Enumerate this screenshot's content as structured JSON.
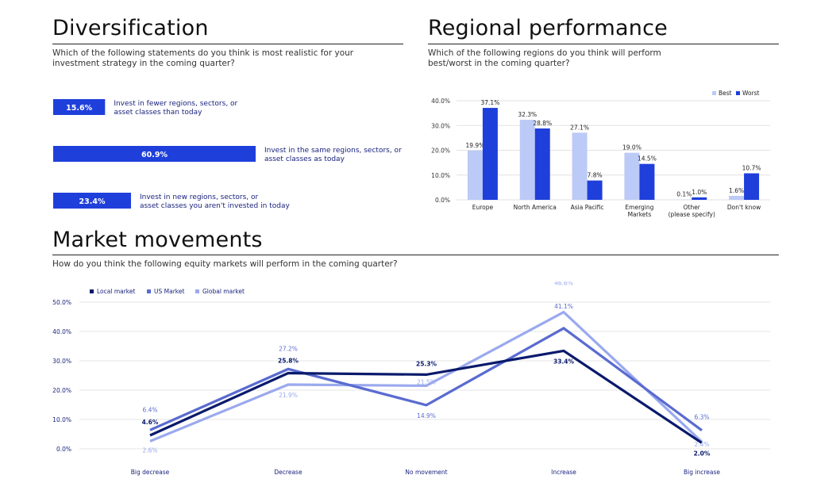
{
  "colors": {
    "dark_blue": "#0a1a6b",
    "mid_blue": "#5a6bd0",
    "light_blue": "#9aa9ee",
    "bar_blue": "#1f3fdb",
    "best_blue": "#bccaf7"
  },
  "diversification": {
    "title": "Diversification",
    "question": "Which of the following statements do you think is most realistic for your investment strategy in the coming quarter?"
  },
  "regional": {
    "title": "Regional performance",
    "question": "Which of the following regions do you think will perform best/worst in the coming quarter?"
  },
  "market": {
    "title": "Market movements",
    "question": "How do you think the following equity markets will perform in the coming quarter?"
  },
  "chart_data": [
    {
      "type": "bar",
      "orientation": "horizontal",
      "categories": [
        "Invest in fewer regions, sectors, or asset classes than today",
        "Invest in the same regions, sectors, or asset classes as today",
        "Invest in new regions, sectors, or asset classes you aren't invested in today"
      ],
      "values": [
        15.6,
        60.9,
        23.4
      ],
      "value_labels": [
        "15.6%",
        "60.9%",
        "23.4%"
      ],
      "unit": "%"
    },
    {
      "type": "bar",
      "categories": [
        "Europe",
        "North America",
        "Asia Pacific",
        "Emerging Markets",
        "Other (please specify)",
        "Don't know"
      ],
      "series": [
        {
          "name": "Best",
          "values": [
            19.9,
            32.3,
            27.1,
            19.0,
            0.1,
            1.6
          ],
          "labels": [
            "19.9%",
            "32.3%",
            "27.1%",
            "19.0%",
            "0.1%",
            "1.6%"
          ]
        },
        {
          "name": "Worst",
          "values": [
            37.1,
            28.8,
            7.8,
            14.5,
            1.0,
            10.7
          ],
          "labels": [
            "37.1%",
            "28.8%",
            "7.8%",
            "14.5%",
            "1.0%",
            "10.7%"
          ]
        }
      ],
      "yticks": [
        "0.0%",
        "10.0%",
        "20.0%",
        "30.0%",
        "40.0%"
      ],
      "ylim": [
        0,
        40
      ],
      "legend": "top-right",
      "grid": true
    },
    {
      "type": "line",
      "categories": [
        "Big decrease",
        "Decrease",
        "No movement",
        "Increase",
        "Big increase"
      ],
      "series": [
        {
          "name": "Local market",
          "values": [
            4.6,
            25.8,
            25.3,
            33.4,
            2.0
          ],
          "labels": [
            "4.6%",
            "25.8%",
            "25.3%",
            "33.4%",
            "2.0%"
          ]
        },
        {
          "name": "US Market",
          "values": [
            6.4,
            27.2,
            14.9,
            41.1,
            6.3
          ],
          "labels": [
            "6.4%",
            "27.2%",
            "14.9%",
            "41.1%",
            "6.3%"
          ]
        },
        {
          "name": "Global market",
          "values": [
            2.6,
            21.9,
            21.5,
            46.6,
            2.4
          ],
          "labels": [
            "2.6%",
            "21.9%",
            "21.5%",
            "46.6%",
            "2.4%"
          ]
        }
      ],
      "yticks": [
        "0.0%",
        "10.0%",
        "20.0%",
        "30.0%",
        "40.0%",
        "50.0%"
      ],
      "ylim": [
        0,
        50
      ],
      "legend": "top-left",
      "grid": true
    }
  ]
}
